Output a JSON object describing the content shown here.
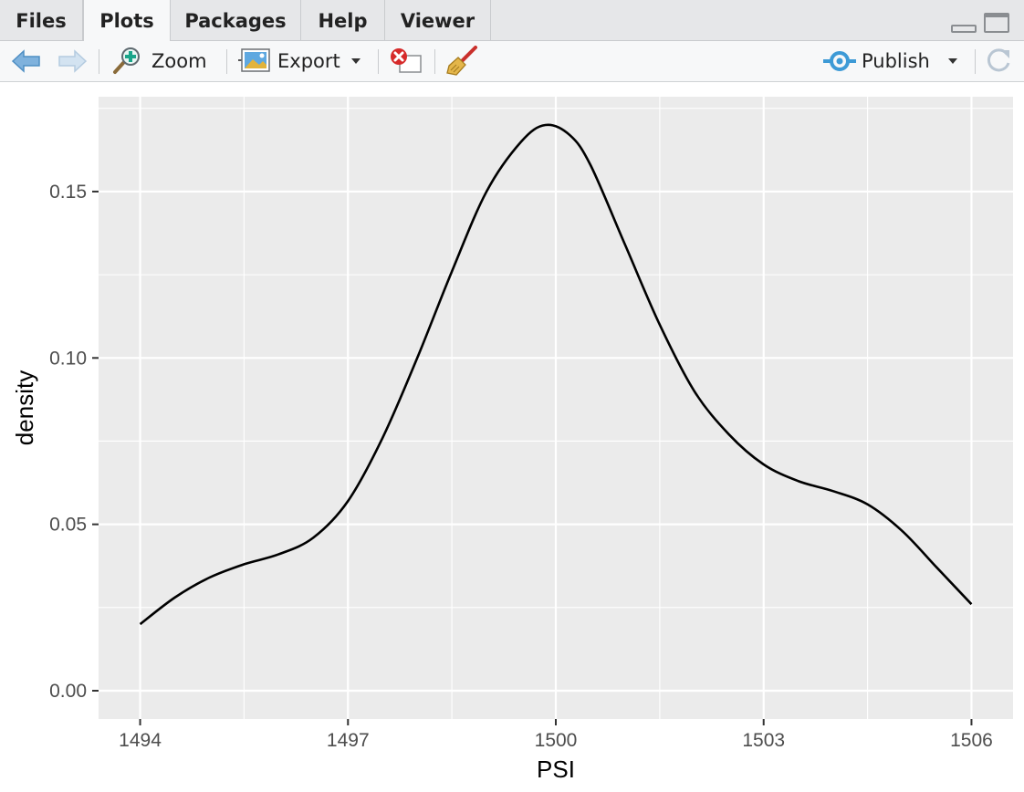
{
  "tabs": [
    {
      "label": "Files"
    },
    {
      "label": "Plots"
    },
    {
      "label": "Packages"
    },
    {
      "label": "Help"
    },
    {
      "label": "Viewer"
    }
  ],
  "toolbar": {
    "zoom_label": "Zoom",
    "export_label": "Export",
    "publish_label": "Publish"
  },
  "icons": {
    "back": "arrow-left-icon",
    "forward": "arrow-right-icon",
    "zoom": "magnifier-plus-icon",
    "export": "export-image-icon",
    "remove": "remove-plot-icon",
    "clear": "broom-icon",
    "publish": "publish-icon",
    "refresh": "refresh-icon",
    "minimize": "minimize-icon",
    "maximize": "maximize-icon"
  },
  "colors": {
    "panel_bg": "#ebebeb",
    "grid": "#ffffff",
    "line": "#000000",
    "accent": "#3d9ad6"
  },
  "chart_data": {
    "type": "line",
    "title": "",
    "xlabel": "PSI",
    "ylabel": "density",
    "xlim": [
      1493.4,
      1506.6
    ],
    "ylim": [
      -0.0085,
      0.1785
    ],
    "x_ticks": [
      1494,
      1497,
      1500,
      1503,
      1506
    ],
    "y_ticks": [
      0.0,
      0.05,
      0.1,
      0.15
    ],
    "x_tick_labels": [
      "1494",
      "1497",
      "1500",
      "1503",
      "1506"
    ],
    "y_tick_labels": [
      "0.00",
      "0.05",
      "0.10",
      "0.15"
    ],
    "grid": true,
    "series": [
      {
        "x": [
          1494.0,
          1494.5,
          1495.0,
          1495.5,
          1496.0,
          1496.5,
          1497.0,
          1497.5,
          1498.0,
          1498.5,
          1499.0,
          1499.5,
          1499.85,
          1500.2,
          1500.5,
          1501.0,
          1501.5,
          1502.0,
          1502.5,
          1503.0,
          1503.5,
          1504.0,
          1504.5,
          1505.0,
          1505.5,
          1506.0
        ],
        "y": [
          0.02,
          0.028,
          0.034,
          0.038,
          0.041,
          0.046,
          0.057,
          0.076,
          0.1,
          0.126,
          0.15,
          0.165,
          0.17,
          0.167,
          0.158,
          0.134,
          0.11,
          0.09,
          0.077,
          0.068,
          0.063,
          0.06,
          0.056,
          0.048,
          0.037,
          0.026
        ]
      }
    ]
  }
}
